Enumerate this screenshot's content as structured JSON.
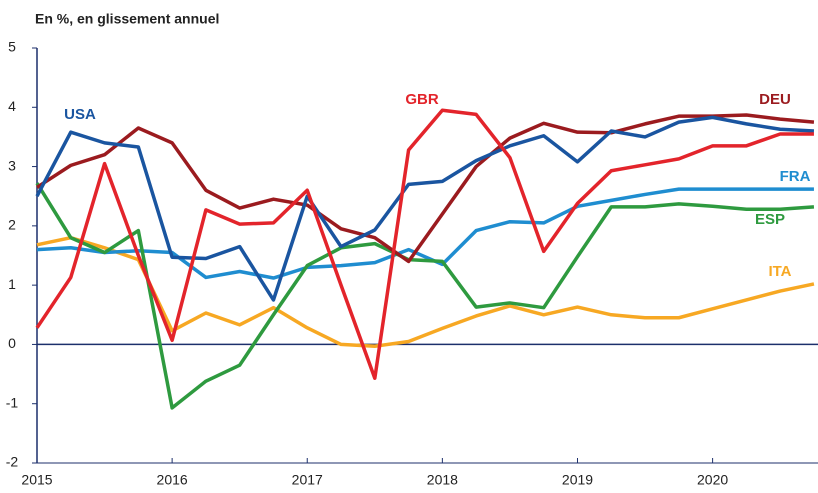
{
  "chart_data": {
    "type": "line",
    "title": "En %, en glissement annuel",
    "x": [
      2015,
      2015.25,
      2015.5,
      2015.75,
      2016,
      2016.25,
      2016.5,
      2016.75,
      2017,
      2017.25,
      2017.5,
      2017.75,
      2018,
      2018.25,
      2018.5,
      2018.75,
      2019,
      2019.25,
      2019.5,
      2019.75,
      2020,
      2020.25,
      2020.5,
      2020.75
    ],
    "xlim": [
      2015,
      2020.78
    ],
    "xticks": [
      2015,
      2016,
      2017,
      2018,
      2019,
      2020
    ],
    "ylim": [
      -2,
      5
    ],
    "yticks": [
      -2,
      -1,
      0,
      1,
      2,
      3,
      4,
      5
    ],
    "series": [
      {
        "name": "ITA",
        "color": "#f7a823",
        "values": [
          1.68,
          1.8,
          1.63,
          1.43,
          0.23,
          0.53,
          0.33,
          0.62,
          0.28,
          0.0,
          -0.03,
          0.05,
          0.27,
          0.48,
          0.65,
          0.5,
          0.63,
          0.5,
          0.45,
          0.45,
          0.6,
          0.75,
          0.9,
          1.02
        ]
      },
      {
        "name": "FRA",
        "color": "#1f8dd0",
        "values": [
          1.6,
          1.63,
          1.55,
          1.58,
          1.55,
          1.13,
          1.23,
          1.12,
          1.3,
          1.33,
          1.38,
          1.6,
          1.35,
          1.92,
          2.07,
          2.05,
          2.33,
          2.43,
          2.53,
          2.62,
          2.62,
          2.62,
          2.62,
          2.62
        ]
      },
      {
        "name": "ESP",
        "color": "#2e9a3f",
        "values": [
          2.72,
          1.8,
          1.55,
          1.92,
          -1.07,
          -0.62,
          -0.35,
          0.5,
          1.33,
          1.63,
          1.7,
          1.43,
          1.4,
          0.63,
          0.7,
          0.62,
          1.48,
          2.32,
          2.32,
          2.37,
          2.33,
          2.28,
          2.28,
          2.32
        ]
      },
      {
        "name": "DEU",
        "color": "#9b1b1f",
        "values": [
          2.65,
          3.02,
          3.2,
          3.65,
          3.4,
          2.6,
          2.3,
          2.45,
          2.35,
          1.95,
          1.8,
          1.4,
          2.2,
          3.0,
          3.48,
          3.73,
          3.58,
          3.57,
          3.72,
          3.85,
          3.85,
          3.87,
          3.8,
          3.75
        ]
      },
      {
        "name": "USA",
        "color": "#1a55a0",
        "values": [
          2.5,
          3.58,
          3.4,
          3.33,
          1.47,
          1.45,
          1.65,
          0.75,
          2.5,
          1.65,
          1.93,
          2.7,
          2.75,
          3.1,
          3.35,
          3.52,
          3.08,
          3.6,
          3.5,
          3.75,
          3.83,
          3.72,
          3.63,
          3.6
        ]
      },
      {
        "name": "GBR",
        "color": "#e3242b",
        "values": [
          0.28,
          1.13,
          3.05,
          1.5,
          0.07,
          2.27,
          2.03,
          2.05,
          2.6,
          1.0,
          -0.57,
          3.28,
          3.95,
          3.88,
          3.15,
          1.57,
          2.38,
          2.93,
          3.03,
          3.13,
          3.35,
          3.35,
          3.55,
          3.55
        ]
      }
    ]
  }
}
